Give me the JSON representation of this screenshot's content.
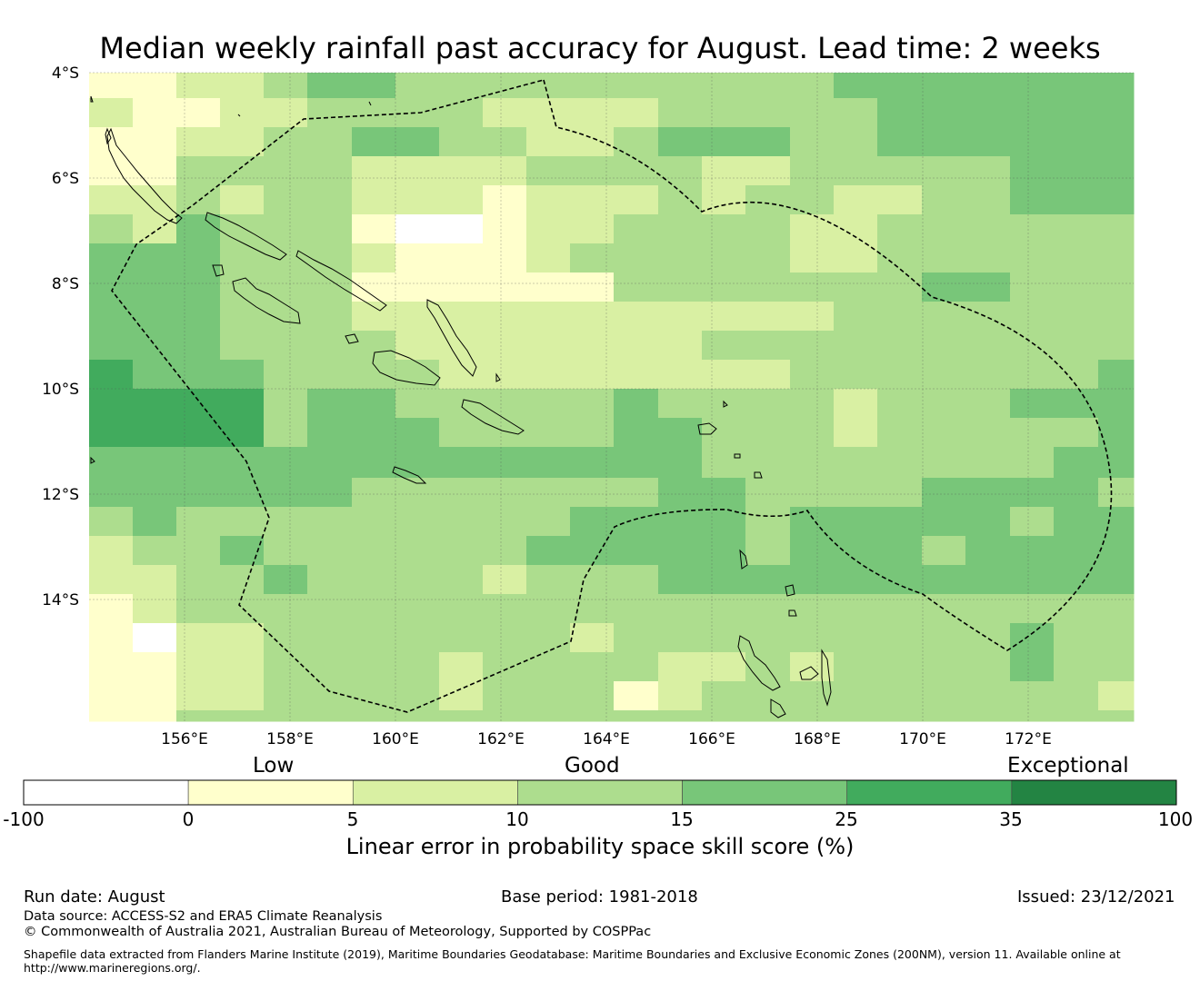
{
  "title": "Median weekly rainfall past accuracy for August. Lead time: 2 weeks",
  "map": {
    "lon_labels": [
      "156°E",
      "158°E",
      "160°E",
      "162°E",
      "164°E",
      "166°E",
      "168°E",
      "170°E",
      "172°E"
    ],
    "lat_labels": [
      "4°S",
      "6°S",
      "8°S",
      "10°S",
      "12°S",
      "14°S"
    ]
  },
  "legend": {
    "categories": [
      "Low",
      "Good",
      "Exceptional"
    ],
    "bounds": [
      "-100",
      "0",
      "5",
      "10",
      "15",
      "25",
      "35",
      "100"
    ],
    "colors": [
      "#ffffff",
      "#ffffcc",
      "#d9f0a3",
      "#addd8e",
      "#78c679",
      "#41ab5d",
      "#238443"
    ],
    "title": "Linear error in probability space skill score (%)"
  },
  "footer": {
    "run_date": "Run date: August",
    "base_period": "Base period: 1981-2018",
    "issued": "Issued: 23/12/2021",
    "data_source": "Data source: ACCESS-S2 and ERA5 Climate Reanalysis",
    "copyright": "© Commonwealth of Australia 2021, Australian Bureau of Meteorology, Supported by COSPPac",
    "shapefile_line1": "Shapefile data extracted from Flanders Marine Institute (2019), Maritime Boundaries Geodatabase: Maritime Boundaries and Exclusive Economic Zones (200NM), version 11. Available online at",
    "shapefile_line2": "http://www.marineregions.org/."
  }
}
